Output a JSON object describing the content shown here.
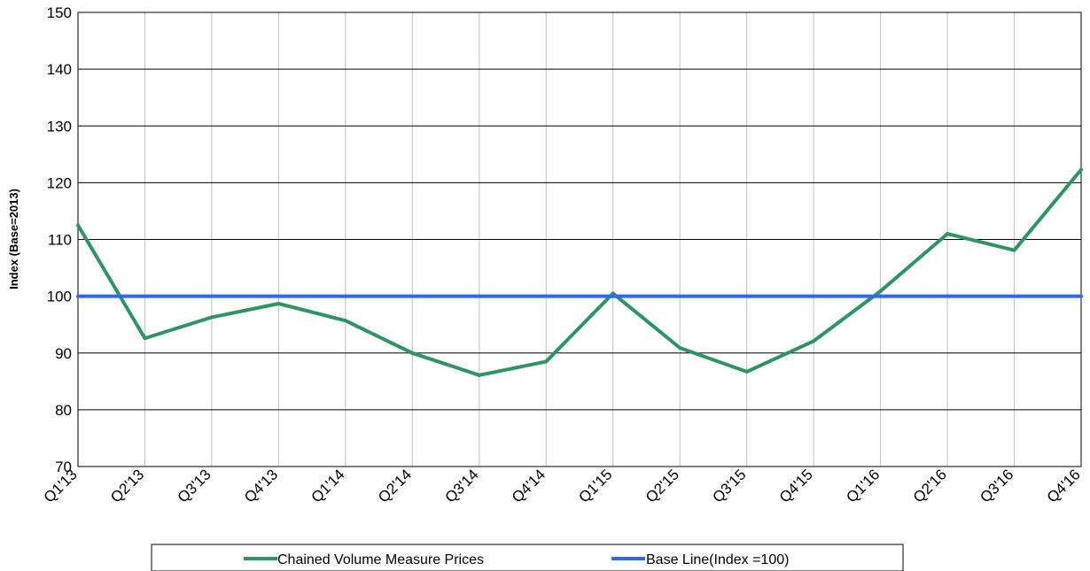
{
  "chart_data": {
    "type": "line",
    "categories": [
      "Q1'13",
      "Q2'13",
      "Q3'13",
      "Q4'13",
      "Q1'14",
      "Q2'14",
      "Q3'14",
      "Q4'14",
      "Q1'15",
      "Q2'15",
      "Q3'15",
      "Q4'15",
      "Q1'16",
      "Q2'16",
      "Q3'16",
      "Q4'16"
    ],
    "series": [
      {
        "name": "Chained Volume Measure Prices",
        "color": "#2e9462",
        "values": [
          112.5,
          92.6,
          96.3,
          98.7,
          95.7,
          90.0,
          86.1,
          88.5,
          100.5,
          90.9,
          86.7,
          92.1,
          100.9,
          111.0,
          108.1,
          122.3
        ]
      },
      {
        "name": "Base Line(Index =100)",
        "color": "#3366ee",
        "values": [
          100,
          100,
          100,
          100,
          100,
          100,
          100,
          100,
          100,
          100,
          100,
          100,
          100,
          100,
          100,
          100
        ]
      }
    ],
    "ylabel": "Index (Base=2013)",
    "xlabel": "",
    "ylim": [
      70,
      150
    ],
    "yticks": [
      70,
      80,
      90,
      100,
      110,
      120,
      130,
      140,
      150
    ],
    "grid": true,
    "legend_position": "bottom"
  }
}
